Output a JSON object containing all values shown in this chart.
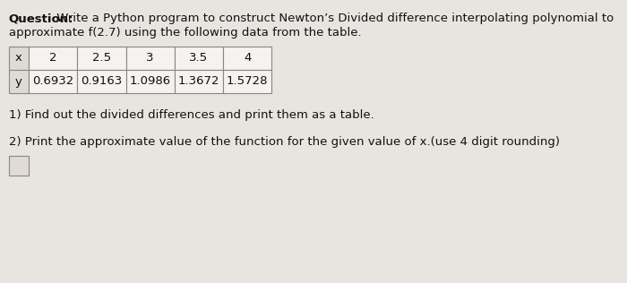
{
  "title_bold": "Question:",
  "title_text": " Write a Python program to construct Newton’s Divided difference interpolating polynomial to\napproximate f(2.7) using the following data from the table.",
  "x_values": [
    "x",
    "2",
    "2.5",
    "3",
    "3.5",
    "4"
  ],
  "y_values": [
    "y",
    "0.6932",
    "0.9163",
    "1.0986",
    "1.3672",
    "1.5728"
  ],
  "point1": "1) Find out the divided differences and print them as a table.",
  "point2": "2) Print the approximate value of the function for the given value of x.(use 4 digit rounding)",
  "bg_color": "#e8e4e0",
  "table_bg": "#f5f2ef",
  "header_bg": "#dedad6",
  "text_color": "#111111",
  "small_box_color": "#e0dbd6",
  "font_size_title": 9.5,
  "font_size_table": 9.5,
  "font_size_points": 9.5
}
